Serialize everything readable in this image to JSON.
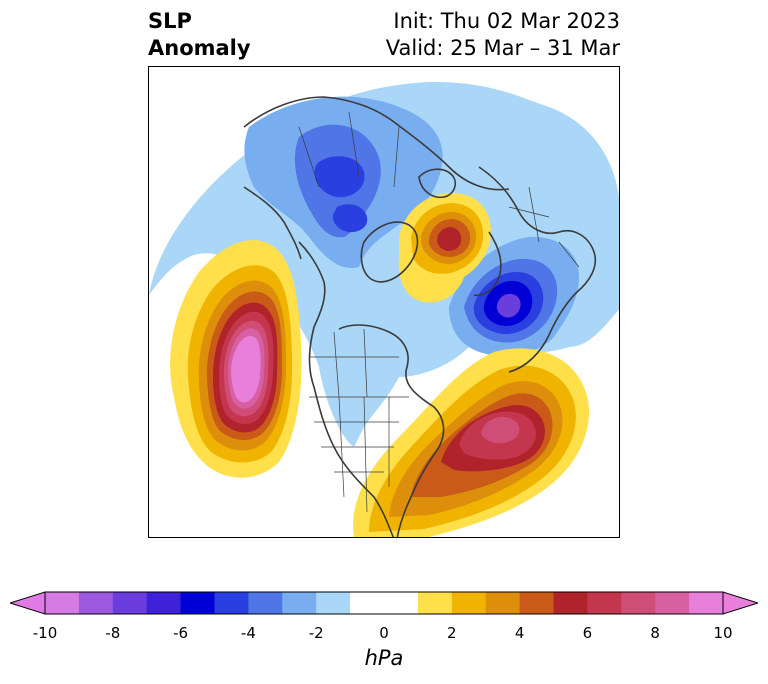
{
  "header": {
    "title_line1": "SLP",
    "title_line2": "Anomaly",
    "init_text": "Init: Thu 02 Mar 2023",
    "valid_text": "Valid: 25 Mar – 31 Mar"
  },
  "colorbar": {
    "unit": "hPa",
    "tick_labels": [
      "-10",
      "-8",
      "-6",
      "-4",
      "-2",
      "0",
      "2",
      "4",
      "6",
      "8",
      "10"
    ],
    "min_color": "#e07be6",
    "max_color": "#e97fda",
    "colors": [
      "#d67be3",
      "#9c59e0",
      "#6a3ddc",
      "#3f21d7",
      "#0000d6",
      "#2a3fdf",
      "#4f75e6",
      "#78aef0",
      "#aad6f8",
      "#ffffff",
      "#ffffff",
      "#ffe04a",
      "#f0b400",
      "#dd8f0c",
      "#c95a18",
      "#b0232b",
      "#c4354e",
      "#cf4d76",
      "#d95fa3",
      "#e87fda"
    ]
  },
  "map": {
    "projection": "north polar stereographic",
    "field": "sea level pressure anomaly",
    "colors": {
      "land_outline": "#3b3b3b"
    }
  }
}
